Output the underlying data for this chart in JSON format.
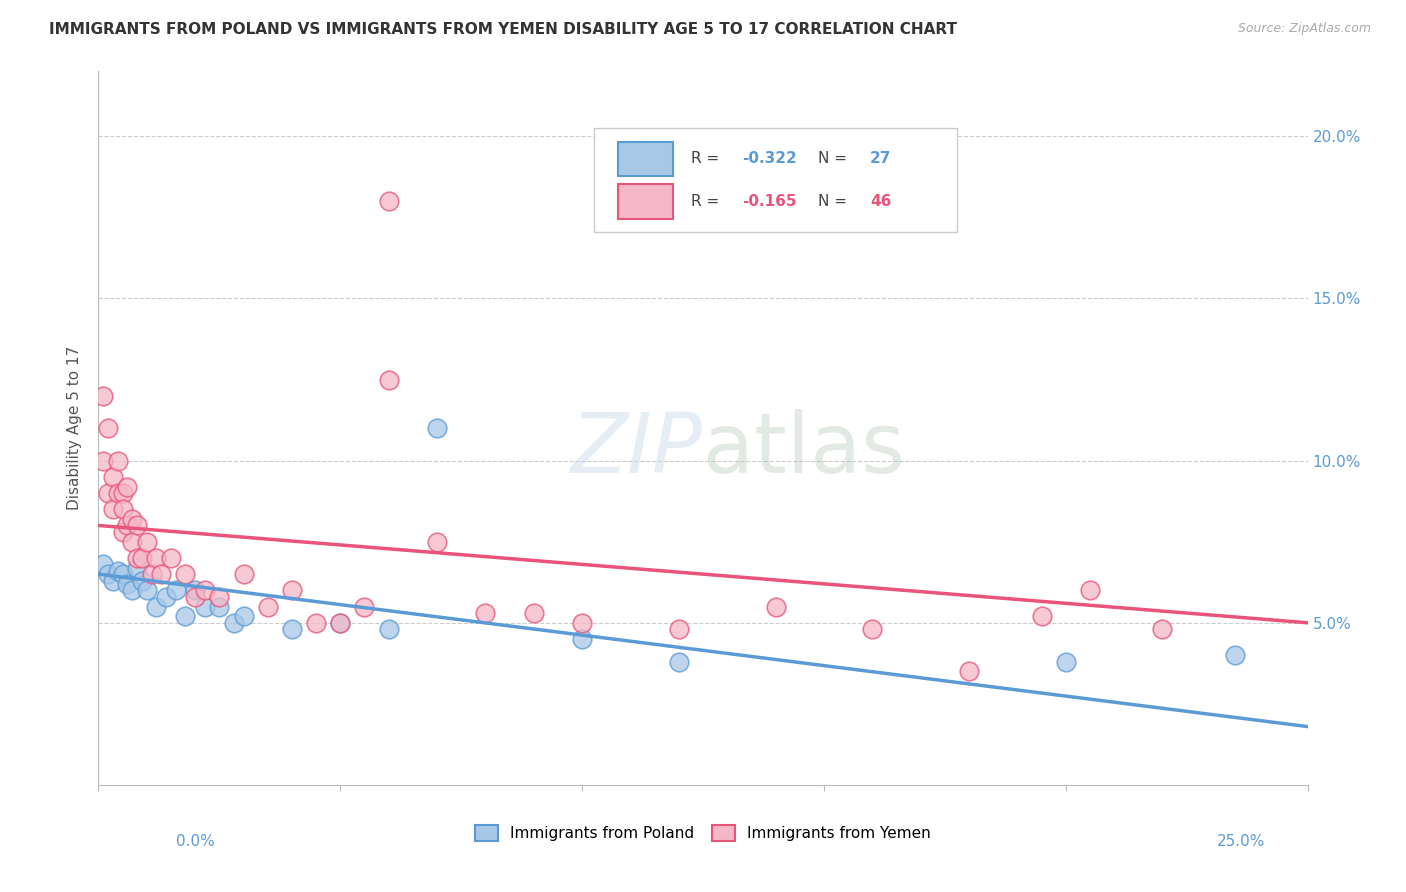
{
  "title": "IMMIGRANTS FROM POLAND VS IMMIGRANTS FROM YEMEN DISABILITY AGE 5 TO 17 CORRELATION CHART",
  "source": "Source: ZipAtlas.com",
  "ylabel": "Disability Age 5 to 17",
  "legend1_label": "Immigrants from Poland",
  "legend2_label": "Immigrants from Yemen",
  "r1": "-0.322",
  "n1": "27",
  "r2": "-0.165",
  "n2": "46",
  "color_poland": "#a8c8e8",
  "color_poland_line": "#5b9bd5",
  "color_yemen": "#f4b8c8",
  "color_yemen_line": "#e8547a",
  "xlim": [
    0.0,
    0.25
  ],
  "ylim": [
    0.0,
    0.22
  ],
  "poland_x": [
    0.001,
    0.002,
    0.003,
    0.004,
    0.005,
    0.006,
    0.007,
    0.008,
    0.009,
    0.01,
    0.012,
    0.014,
    0.016,
    0.018,
    0.02,
    0.022,
    0.025,
    0.028,
    0.03,
    0.04,
    0.05,
    0.06,
    0.07,
    0.1,
    0.12,
    0.2,
    0.235
  ],
  "poland_y": [
    0.068,
    0.065,
    0.063,
    0.066,
    0.065,
    0.062,
    0.06,
    0.067,
    0.063,
    0.06,
    0.055,
    0.058,
    0.06,
    0.052,
    0.06,
    0.055,
    0.055,
    0.05,
    0.052,
    0.048,
    0.05,
    0.048,
    0.11,
    0.045,
    0.038,
    0.038,
    0.04
  ],
  "yemen_x": [
    0.001,
    0.001,
    0.002,
    0.002,
    0.003,
    0.003,
    0.004,
    0.004,
    0.005,
    0.005,
    0.005,
    0.006,
    0.006,
    0.007,
    0.007,
    0.008,
    0.008,
    0.009,
    0.01,
    0.011,
    0.012,
    0.013,
    0.015,
    0.018,
    0.02,
    0.022,
    0.025,
    0.03,
    0.035,
    0.04,
    0.045,
    0.05,
    0.055,
    0.06,
    0.07,
    0.08,
    0.09,
    0.1,
    0.12,
    0.14,
    0.16,
    0.18,
    0.195,
    0.205,
    0.22,
    0.06
  ],
  "yemen_y": [
    0.12,
    0.1,
    0.11,
    0.09,
    0.095,
    0.085,
    0.1,
    0.09,
    0.09,
    0.085,
    0.078,
    0.08,
    0.092,
    0.082,
    0.075,
    0.08,
    0.07,
    0.07,
    0.075,
    0.065,
    0.07,
    0.065,
    0.07,
    0.065,
    0.058,
    0.06,
    0.058,
    0.065,
    0.055,
    0.06,
    0.05,
    0.05,
    0.055,
    0.18,
    0.075,
    0.053,
    0.053,
    0.05,
    0.048,
    0.055,
    0.048,
    0.035,
    0.052,
    0.06,
    0.048,
    0.125
  ],
  "poland_trendline_start_y": 0.065,
  "poland_trendline_end_y": 0.018,
  "yemen_trendline_start_y": 0.08,
  "yemen_trendline_end_y": 0.05
}
